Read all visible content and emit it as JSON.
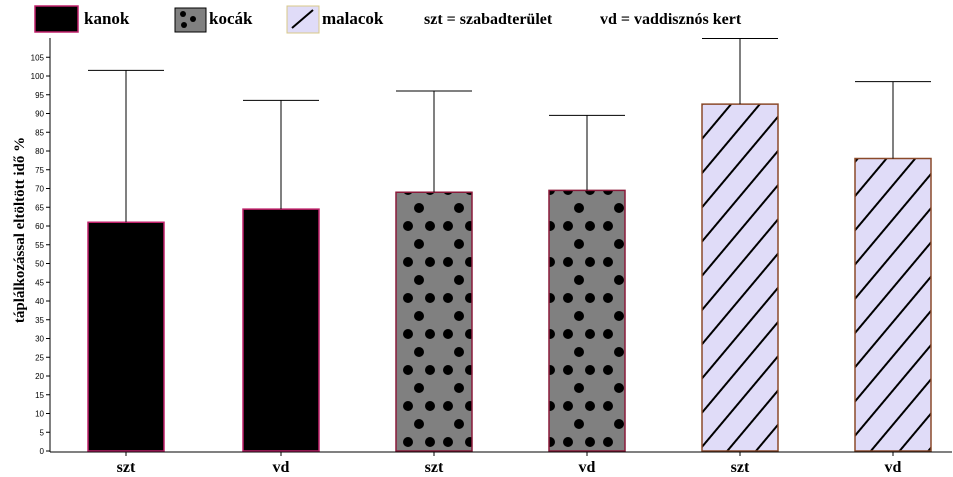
{
  "legend": {
    "items": [
      {
        "label": "kanok",
        "pattern": "solid",
        "fill": "#000000"
      },
      {
        "label": "kocák",
        "pattern": "dots",
        "fill": "#808080"
      },
      {
        "label": "malacok",
        "pattern": "stripes",
        "fill": "#e0dcf8"
      }
    ],
    "note1": "szt = szabadterület",
    "note2": "vd = vaddisznós kert"
  },
  "chart_data": {
    "type": "bar",
    "ylabel": "táplálkozással eltöltött idő %",
    "xlabel": "",
    "ylim": [
      0,
      107
    ],
    "yticks": [
      0,
      5,
      10,
      15,
      20,
      25,
      30,
      35,
      40,
      45,
      50,
      55,
      60,
      65,
      70,
      75,
      80,
      85,
      90,
      95,
      100,
      105
    ],
    "grid": false,
    "legend_position": "top",
    "categories": [
      "szt",
      "vd",
      "szt",
      "vd",
      "szt",
      "vd"
    ],
    "series": [
      {
        "name": "kanok",
        "pattern": "solid",
        "fill": "#000000",
        "edge": "#c0206a",
        "indices": [
          0,
          1
        ]
      },
      {
        "name": "kocák",
        "pattern": "dots",
        "fill": "#808080",
        "edge": "#8b1a3a",
        "indices": [
          2,
          3
        ]
      },
      {
        "name": "malacok",
        "pattern": "stripes",
        "fill": "#e0dcf8",
        "edge": "#8b4a2a",
        "indices": [
          4,
          5
        ]
      }
    ],
    "values": [
      61,
      64.5,
      69,
      69.5,
      92.5,
      78
    ],
    "error_upper": [
      101.5,
      93.5,
      96,
      89.5,
      110,
      98.5
    ]
  }
}
